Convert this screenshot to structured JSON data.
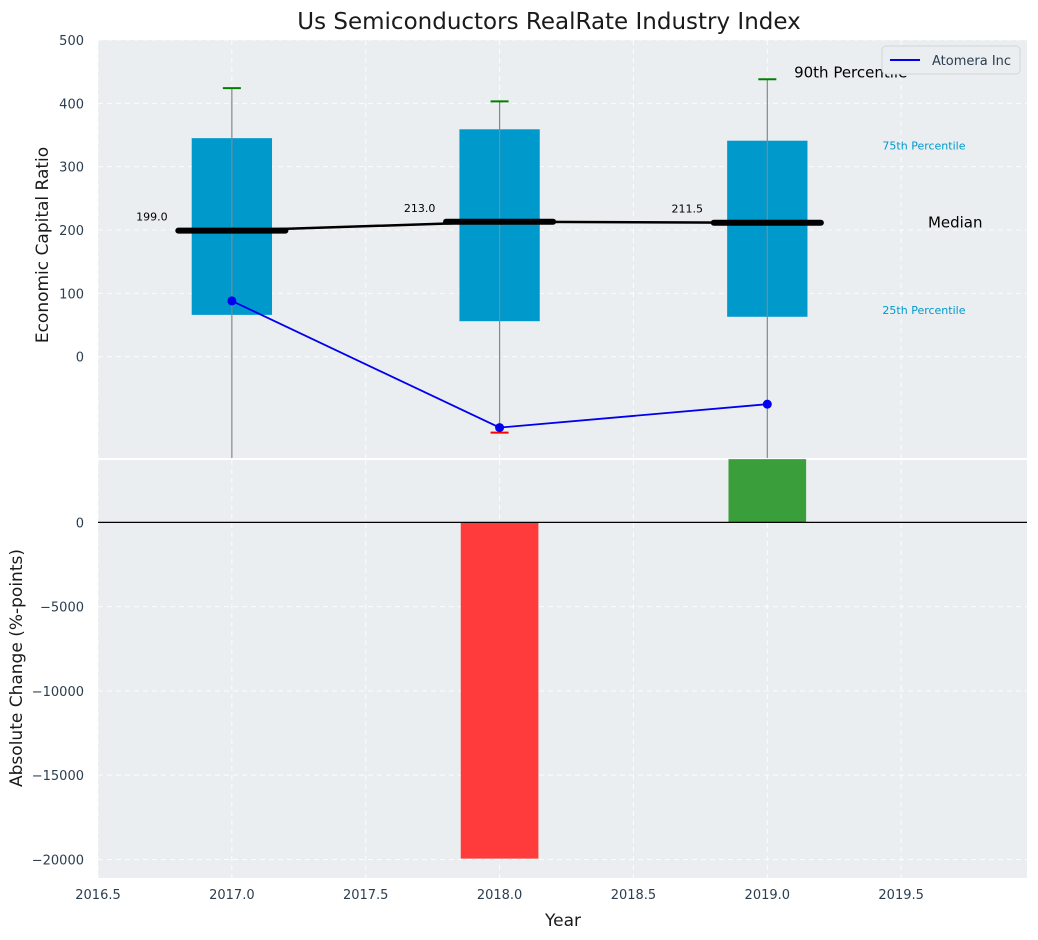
{
  "chart_data": {
    "type": "box",
    "title": "Us Semiconductors RealRate Industry Index",
    "xlabel": "Year",
    "x_ticks": [
      "2016.5",
      "2017.0",
      "2017.5",
      "2018.0",
      "2018.5",
      "2019.0",
      "2019.5"
    ],
    "x_range": [
      2016.5,
      2019.97
    ],
    "top_panel": {
      "ylabel": "Economic Capital Ratio",
      "ylim": [
        -160,
        500
      ],
      "y_ticks": [
        "0",
        "100",
        "200",
        "300",
        "400",
        "500"
      ],
      "boxes": [
        {
          "year": 2017,
          "q25": 66,
          "q75": 345,
          "median": 199.0,
          "p90": 424,
          "p10": -160,
          "median_label": "199.0"
        },
        {
          "year": 2018,
          "q25": 56,
          "q75": 359,
          "median": 213.0,
          "p90": 403,
          "p10": -120,
          "median_label": "213.0"
        },
        {
          "year": 2019,
          "q25": 63,
          "q75": 341,
          "median": 211.5,
          "p90": 438,
          "p10": -160,
          "median_label": "211.5"
        }
      ],
      "series": [
        {
          "name": "Atomera Inc",
          "color": "#0000ee",
          "x": [
            2017,
            2018,
            2019
          ],
          "values": [
            88,
            -112,
            -75
          ]
        }
      ],
      "annotations": {
        "p90": "90th Percentile",
        "p75": "75th Percentile",
        "median": "Median",
        "p25": "25th Percentile"
      },
      "legend": {
        "position": "top-right",
        "label": "Atomera Inc"
      }
    },
    "bottom_panel": {
      "ylabel": "Absolute Change (%-points)",
      "ylim": [
        -21100,
        3700
      ],
      "y_ticks": [
        "0",
        "−5000",
        "−10000",
        "−15000",
        "−20000"
      ],
      "bars": [
        {
          "year": 2018,
          "value": -19950,
          "color": "#ff3b3b"
        },
        {
          "year": 2019,
          "value": 3750,
          "color": "#3a9e3a"
        }
      ]
    },
    "colors": {
      "plot_bg": "#eaeef0",
      "box": "#0099cc",
      "median": "#000000",
      "whisker": "#808890",
      "cap_top": "#008000",
      "cap_bottom": "#ff0000",
      "tick_text": "#2b3e50"
    }
  }
}
